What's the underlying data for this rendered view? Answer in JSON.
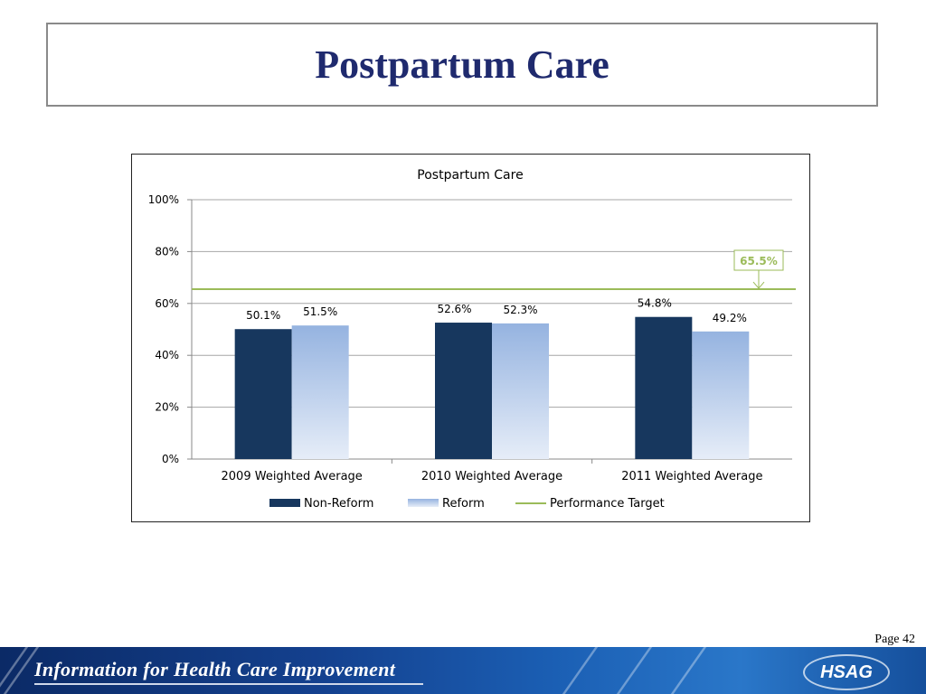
{
  "slide": {
    "title": "Postpartum Care",
    "page_label": "Page 42",
    "footer_tagline": "Information for Health Care Improvement",
    "logo_text": "HSAG"
  },
  "colors": {
    "non_reform": "#17375e",
    "reform_top": "#95b3e0",
    "reform_bottom": "#e6edf8",
    "target": "#9bbb59",
    "title": "#1f2a6e"
  },
  "chart_data": {
    "type": "bar",
    "title": "Postpartum Care",
    "categories": [
      "2009 Weighted Average",
      "2010 Weighted Average",
      "2011 Weighted Average"
    ],
    "series": [
      {
        "name": "Non-Reform",
        "values": [
          50.1,
          52.6,
          54.8
        ],
        "labels": [
          "50.1%",
          "52.6%",
          "54.8%"
        ]
      },
      {
        "name": "Reform",
        "values": [
          51.5,
          52.3,
          49.2
        ],
        "labels": [
          "51.5%",
          "52.3%",
          "49.2%"
        ]
      }
    ],
    "target": {
      "name": "Performance Target",
      "value": 65.5,
      "label": "65.5%"
    },
    "ylim": [
      0,
      100
    ],
    "yticks": [
      0,
      20,
      40,
      60,
      80,
      100
    ],
    "ytick_labels": [
      "0%",
      "20%",
      "40%",
      "60%",
      "80%",
      "100%"
    ],
    "legend_position": "bottom",
    "grid": true
  }
}
